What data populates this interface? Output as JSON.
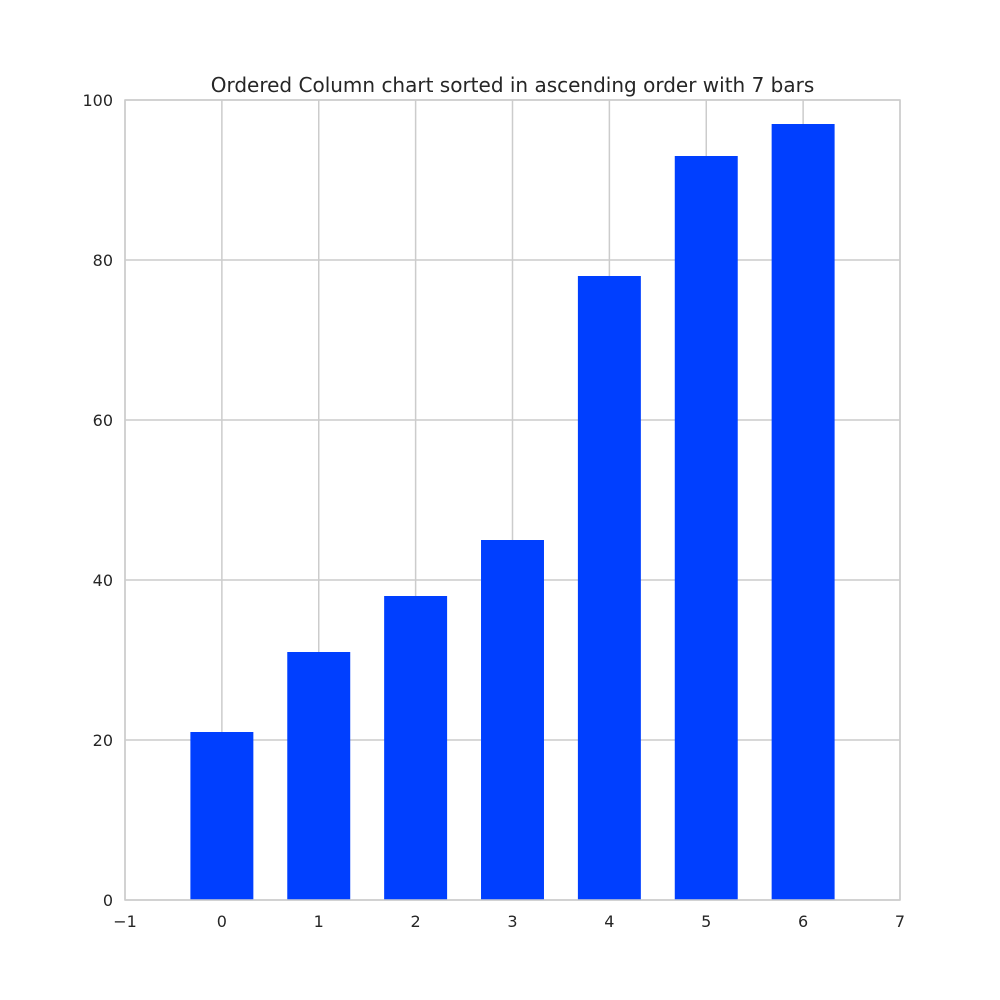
{
  "colors": {
    "bar": "#003fff",
    "grid": "#cccccc",
    "frame": "#cccccc",
    "text": "#262626",
    "background": "#ffffff"
  },
  "chart_data": {
    "type": "bar",
    "title": "Ordered Column chart sorted in ascending order with 7 bars",
    "xlabel": "",
    "ylabel": "",
    "x": [
      0,
      1,
      2,
      3,
      4,
      5,
      6
    ],
    "values": [
      21,
      31,
      38,
      45,
      78,
      93,
      97
    ],
    "bar_width": 0.65,
    "xlim": [
      -1,
      7
    ],
    "ylim": [
      0,
      100
    ],
    "xticks": [
      -1,
      0,
      1,
      2,
      3,
      4,
      5,
      6,
      7
    ],
    "xtick_labels": [
      "−1",
      "0",
      "1",
      "2",
      "3",
      "4",
      "5",
      "6",
      "7"
    ],
    "yticks": [
      0,
      20,
      40,
      60,
      80,
      100
    ],
    "ytick_labels": [
      "0",
      "20",
      "40",
      "60",
      "80",
      "100"
    ],
    "grid": true,
    "legend": "none"
  }
}
